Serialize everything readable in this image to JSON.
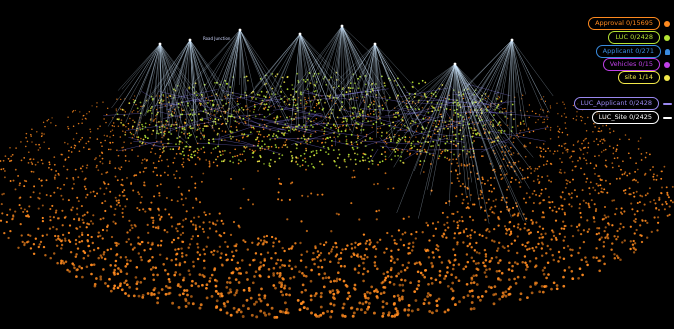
{
  "legend": [
    {
      "label": "Approval 0/15695",
      "color": "#ff8a1f",
      "icon": "dot-icon"
    },
    {
      "label": "LUC 0/2428",
      "color": "#b6e534",
      "icon": "dot-icon"
    },
    {
      "label": "Applicant 0/271",
      "color": "#3a8ce0",
      "icon": "person-icon"
    },
    {
      "label": "Vehicles 0/15",
      "color": "#c040e8",
      "icon": "dot-icon"
    },
    {
      "label": "site 1/14",
      "color": "#f2e84a",
      "icon": "dot-icon"
    },
    {
      "label": "LUC_Applicant 0/2428",
      "color": "#9a88f0",
      "icon": "line-icon"
    },
    {
      "label": "LUC_Site 0/2425",
      "color": "#ffffff",
      "icon": "line-icon"
    }
  ],
  "node_label": "Road Junction",
  "colors": {
    "background": "#000000",
    "approval": "#ff8a1f",
    "luc": "#b6e534",
    "applicant_edge": "#8a7cf0",
    "site_edge": "#cfe9ff"
  }
}
